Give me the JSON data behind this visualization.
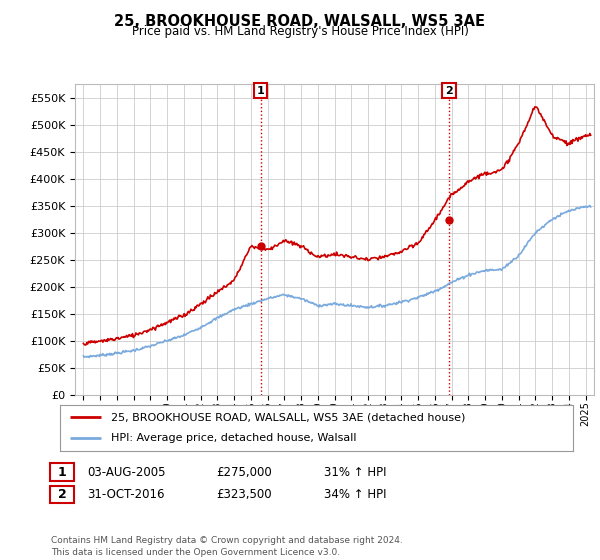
{
  "title": "25, BROOKHOUSE ROAD, WALSALL, WS5 3AE",
  "subtitle": "Price paid vs. HM Land Registry's House Price Index (HPI)",
  "legend_line1": "25, BROOKHOUSE ROAD, WALSALL, WS5 3AE (detached house)",
  "legend_line2": "HPI: Average price, detached house, Walsall",
  "annotation1_date": "03-AUG-2005",
  "annotation1_price": "£275,000",
  "annotation1_pct": "31% ↑ HPI",
  "annotation2_date": "31-OCT-2016",
  "annotation2_price": "£323,500",
  "annotation2_pct": "34% ↑ HPI",
  "footer": "Contains HM Land Registry data © Crown copyright and database right 2024.\nThis data is licensed under the Open Government Licence v3.0.",
  "sale1_x": 2005.58,
  "sale1_y": 275000,
  "sale2_x": 2016.83,
  "sale2_y": 323500,
  "hpi_color": "#7aaadd",
  "price_color": "#cc0000",
  "background_color": "#ffffff",
  "grid_color": "#cccccc",
  "ylim": [
    0,
    575000
  ],
  "xlim": [
    1994.5,
    2025.5
  ],
  "yticks": [
    0,
    50000,
    100000,
    150000,
    200000,
    250000,
    300000,
    350000,
    400000,
    450000,
    500000,
    550000
  ],
  "xtick_years": [
    1995,
    1996,
    1997,
    1998,
    1999,
    2000,
    2001,
    2002,
    2003,
    2004,
    2005,
    2006,
    2007,
    2008,
    2009,
    2010,
    2011,
    2012,
    2013,
    2014,
    2015,
    2016,
    2017,
    2018,
    2019,
    2020,
    2021,
    2022,
    2023,
    2024,
    2025
  ],
  "hpi_years": [
    1995,
    1996,
    1997,
    1998,
    1999,
    2000,
    2001,
    2002,
    2003,
    2004,
    2005,
    2006,
    2007,
    2008,
    2009,
    2010,
    2011,
    2012,
    2013,
    2014,
    2015,
    2016,
    2017,
    2018,
    2019,
    2020,
    2021,
    2022,
    2023,
    2024,
    2025
  ],
  "hpi_values": [
    70000,
    73000,
    77000,
    82000,
    90000,
    100000,
    110000,
    125000,
    142000,
    158000,
    168000,
    178000,
    185000,
    178000,
    165000,
    168000,
    165000,
    162000,
    165000,
    172000,
    180000,
    192000,
    208000,
    222000,
    230000,
    232000,
    258000,
    300000,
    325000,
    340000,
    348000
  ],
  "red_years": [
    1995,
    1996,
    1997,
    1998,
    1999,
    2000,
    2001,
    2002,
    2003,
    2004,
    2005,
    2006,
    2007,
    2008,
    2009,
    2010,
    2011,
    2012,
    2013,
    2014,
    2015,
    2016,
    2017,
    2018,
    2019,
    2020,
    2021,
    2022,
    2023,
    2024,
    2025
  ],
  "red_values": [
    95000,
    99000,
    104000,
    110000,
    121000,
    134000,
    147000,
    168000,
    190000,
    212000,
    275000,
    268000,
    285000,
    275000,
    255000,
    260000,
    255000,
    250000,
    255000,
    265000,
    280000,
    323500,
    370000,
    395000,
    410000,
    415000,
    465000,
    535000,
    480000,
    465000,
    480000
  ]
}
